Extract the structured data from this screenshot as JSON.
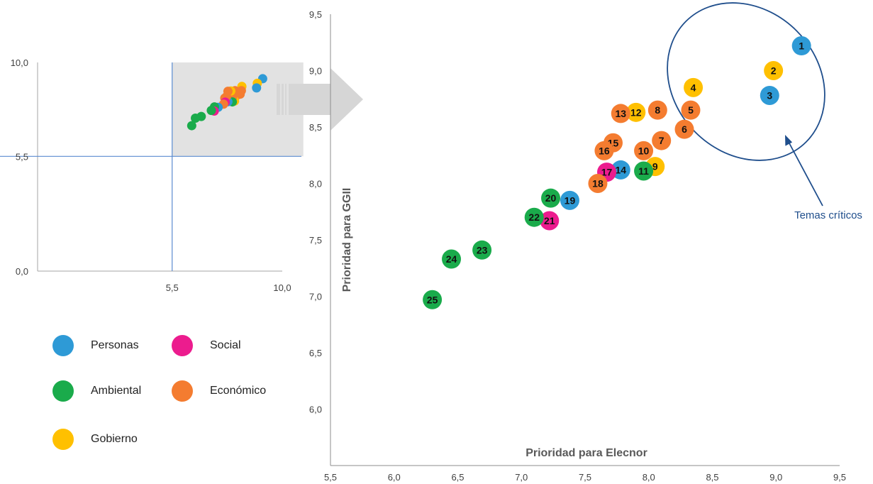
{
  "colors": {
    "Personas": "#2e9ad6",
    "Social": "#ec1c8e",
    "Ambiental": "#1aab4b",
    "Económico": "#f47c30",
    "Gobierno": "#ffc000",
    "axis": "#5b8bd0",
    "highlight": "#e2e2e2",
    "arrow": "#d6d6d6",
    "annotation": "#1f4e8c"
  },
  "legend": [
    {
      "label": "Personas",
      "category": "Personas"
    },
    {
      "label": "Social",
      "category": "Social"
    },
    {
      "label": "Ambiental",
      "category": "Ambiental"
    },
    {
      "label": "Económico",
      "category": "Económico"
    },
    {
      "label": "Gobierno",
      "category": "Gobierno"
    }
  ],
  "chart_data": [
    {
      "type": "scatter",
      "xlim": [
        0,
        10
      ],
      "ylim": [
        0,
        10
      ],
      "x_ticks": [
        "5,5",
        "10,0"
      ],
      "y_ticks": [
        "0,0",
        "5,5",
        "10,0"
      ],
      "grid": false,
      "reference_lines": {
        "x": 5.5,
        "y": 5.5
      },
      "highlight_region": {
        "x": [
          5.5,
          10
        ],
        "y": [
          5.5,
          10
        ]
      },
      "points_source": "same data as the zoomed chart"
    },
    {
      "type": "scatter",
      "xlabel": "Prioridad para Elecnor",
      "ylabel": "Prioridad para GGII",
      "xlim": [
        5.5,
        9.5
      ],
      "ylim": [
        5.5,
        9.5
      ],
      "x_ticks": [
        "5,5",
        "6,0",
        "6,5",
        "7,0",
        "7,5",
        "8,0",
        "8,5",
        "9,0",
        "9,5"
      ],
      "y_ticks": [
        "6,0",
        "6,5",
        "7,0",
        "7,5",
        "8,0",
        "8,5",
        "9,0",
        "9,5"
      ],
      "grid": false,
      "annotation": {
        "text": "Temas críticos",
        "encloses": [
          "1",
          "2",
          "3",
          "4",
          "5",
          "6"
        ]
      },
      "points": [
        {
          "label": "1",
          "x": 9.2,
          "y": 9.22,
          "category": "Personas"
        },
        {
          "label": "2",
          "x": 8.98,
          "y": 9.0,
          "category": "Gobierno"
        },
        {
          "label": "3",
          "x": 8.95,
          "y": 8.78,
          "category": "Personas"
        },
        {
          "label": "4",
          "x": 8.35,
          "y": 8.85,
          "category": "Gobierno"
        },
        {
          "label": "5",
          "x": 8.33,
          "y": 8.65,
          "category": "Económico"
        },
        {
          "label": "6",
          "x": 8.28,
          "y": 8.48,
          "category": "Económico"
        },
        {
          "label": "7",
          "x": 8.1,
          "y": 8.38,
          "category": "Económico"
        },
        {
          "label": "8",
          "x": 8.07,
          "y": 8.65,
          "category": "Económico"
        },
        {
          "label": "9",
          "x": 8.05,
          "y": 8.15,
          "category": "Gobierno"
        },
        {
          "label": "10",
          "x": 7.96,
          "y": 8.29,
          "category": "Económico"
        },
        {
          "label": "11",
          "x": 7.96,
          "y": 8.11,
          "category": "Ambiental"
        },
        {
          "label": "12",
          "x": 7.9,
          "y": 8.63,
          "category": "Gobierno"
        },
        {
          "label": "13",
          "x": 7.78,
          "y": 8.62,
          "category": "Económico"
        },
        {
          "label": "14",
          "x": 7.78,
          "y": 8.12,
          "category": "Personas"
        },
        {
          "label": "15",
          "x": 7.72,
          "y": 8.36,
          "category": "Económico"
        },
        {
          "label": "16",
          "x": 7.65,
          "y": 8.29,
          "category": "Económico"
        },
        {
          "label": "17",
          "x": 7.67,
          "y": 8.1,
          "category": "Social"
        },
        {
          "label": "18",
          "x": 7.6,
          "y": 8.0,
          "category": "Económico"
        },
        {
          "label": "19",
          "x": 7.38,
          "y": 7.85,
          "category": "Personas"
        },
        {
          "label": "20",
          "x": 7.23,
          "y": 7.87,
          "category": "Ambiental"
        },
        {
          "label": "21",
          "x": 7.22,
          "y": 7.67,
          "category": "Social"
        },
        {
          "label": "22",
          "x": 7.1,
          "y": 7.7,
          "category": "Ambiental"
        },
        {
          "label": "23",
          "x": 6.69,
          "y": 7.41,
          "category": "Ambiental"
        },
        {
          "label": "24",
          "x": 6.45,
          "y": 7.33,
          "category": "Ambiental"
        },
        {
          "label": "25",
          "x": 6.3,
          "y": 6.97,
          "category": "Ambiental"
        }
      ]
    }
  ]
}
